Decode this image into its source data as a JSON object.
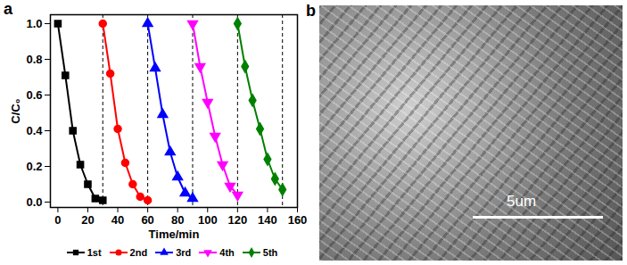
{
  "chart_data": {
    "type": "line",
    "title": "a",
    "x_label": "Time/min",
    "y_label": "C/C₀",
    "xlim": [
      -5,
      160
    ],
    "xticks": [
      0,
      20,
      40,
      60,
      80,
      100,
      120,
      140,
      160
    ],
    "ylim": [
      -0.03,
      1.05
    ],
    "yticks": [
      {
        "value": 0,
        "label": "0.0"
      },
      0.2,
      0.4,
      0.6,
      0.8,
      {
        "value": 1,
        "label": "1.0"
      }
    ],
    "vlines": [
      30,
      60,
      90,
      120,
      150
    ],
    "legend": "bottom",
    "series": [
      {
        "name": "1st",
        "color": "#000000",
        "marker": "square",
        "x": [
          0,
          5,
          10,
          15,
          20,
          25,
          30
        ],
        "values": [
          1.0,
          0.71,
          0.4,
          0.21,
          0.1,
          0.02,
          0.01
        ]
      },
      {
        "name": "2nd",
        "color": "#ff0000",
        "marker": "circle",
        "x": [
          30,
          35,
          40,
          45,
          50,
          55,
          60
        ],
        "values": [
          1.0,
          0.72,
          0.41,
          0.22,
          0.1,
          0.03,
          0.01
        ]
      },
      {
        "name": "3rd",
        "color": "#0000ff",
        "marker": "triangle",
        "x": [
          60,
          65,
          70,
          75,
          80,
          85,
          90
        ],
        "values": [
          1.0,
          0.75,
          0.49,
          0.28,
          0.14,
          0.05,
          0.02
        ]
      },
      {
        "name": "4th",
        "color": "#ff00ff",
        "marker": "triangle-down",
        "x": [
          90,
          95,
          100,
          105,
          110,
          115,
          120
        ],
        "values": [
          1.0,
          0.76,
          0.56,
          0.37,
          0.21,
          0.09,
          0.04
        ]
      },
      {
        "name": "5th",
        "color": "#008000",
        "marker": "diamond",
        "x": [
          120,
          125,
          130,
          135,
          140,
          145,
          150
        ],
        "values": [
          1.0,
          0.76,
          0.57,
          0.41,
          0.24,
          0.13,
          0.07
        ]
      }
    ]
  },
  "image_panel": {
    "label": "b",
    "scale_bar_label": "5um"
  }
}
